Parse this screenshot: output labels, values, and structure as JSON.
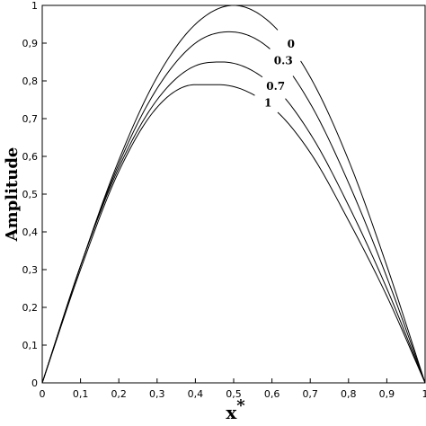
{
  "chart_data": {
    "type": "line",
    "title": "",
    "xlabel": "x*",
    "ylabel": "Amplitude",
    "xlim": [
      0,
      1
    ],
    "ylim": [
      0,
      1
    ],
    "x_ticks": [
      "0",
      "0,1",
      "0,2",
      "0,3",
      "0,4",
      "0,5",
      "0,6",
      "0,7",
      "0,8",
      "0,9",
      "1"
    ],
    "y_ticks": [
      "0",
      "0,1",
      "0,2",
      "0,3",
      "0,4",
      "0,5",
      "0,6",
      "0,7",
      "0,8",
      "0,9",
      "1"
    ],
    "grid": false,
    "legend": "inline labels near curves",
    "line_color": "#000000",
    "series": [
      {
        "name": "0",
        "x": [
          0,
          0.1,
          0.2,
          0.3,
          0.4,
          0.5,
          0.6,
          0.7,
          0.8,
          0.9,
          1
        ],
        "y": [
          0,
          0.31,
          0.59,
          0.81,
          0.95,
          1.0,
          0.95,
          0.81,
          0.59,
          0.31,
          0
        ]
      },
      {
        "name": "0.3",
        "x": [
          0,
          0.1,
          0.2,
          0.3,
          0.4,
          0.49,
          0.6,
          0.7,
          0.8,
          0.9,
          1
        ],
        "y": [
          0,
          0.31,
          0.58,
          0.78,
          0.9,
          0.93,
          0.88,
          0.74,
          0.53,
          0.28,
          0
        ]
      },
      {
        "name": "0.7",
        "x": [
          0,
          0.1,
          0.2,
          0.3,
          0.4,
          0.47,
          0.6,
          0.7,
          0.8,
          0.9,
          1
        ],
        "y": [
          0,
          0.31,
          0.57,
          0.75,
          0.84,
          0.85,
          0.79,
          0.66,
          0.47,
          0.25,
          0
        ]
      },
      {
        "name": "1",
        "x": [
          0,
          0.1,
          0.2,
          0.3,
          0.4,
          0.46,
          0.6,
          0.7,
          0.8,
          0.9,
          1
        ],
        "y": [
          0,
          0.3,
          0.56,
          0.73,
          0.79,
          0.79,
          0.73,
          0.61,
          0.43,
          0.23,
          0
        ]
      }
    ]
  }
}
